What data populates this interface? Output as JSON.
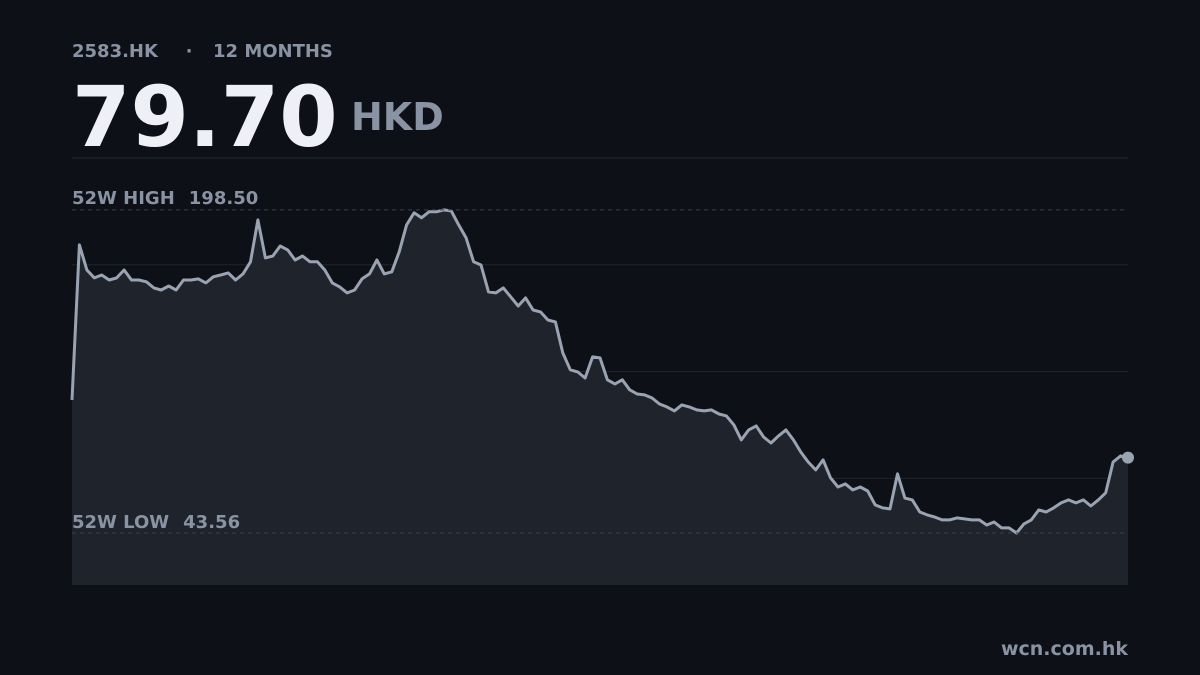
{
  "ticker": "2583.HK",
  "separator": "·",
  "period": "12 MONTHS",
  "price": "79.70",
  "currency": "HKD",
  "source": "wcn.com.hk",
  "chart_data": {
    "type": "line",
    "color": "#9aa3b2",
    "area_color": "#1f232b",
    "ylim": [
      18.6,
      223.4
    ],
    "high": {
      "label": "52W HIGH",
      "value": 198.5,
      "value_label": "198.50"
    },
    "low": {
      "label": "52W LOW",
      "value": 43.56
    },
    "values": [
      107.4,
      181.7,
      169.7,
      165.9,
      167.3,
      164.9,
      165.9,
      169.7,
      164.9,
      164.9,
      164.0,
      161.1,
      160.1,
      162.0,
      160.1,
      164.9,
      164.9,
      165.4,
      163.5,
      166.4,
      167.3,
      168.3,
      164.9,
      167.8,
      173.6,
      193.7,
      175.5,
      176.4,
      181.2,
      179.3,
      174.5,
      176.4,
      173.6,
      173.6,
      169.7,
      163.5,
      161.6,
      158.7,
      160.1,
      165.4,
      167.8,
      174.5,
      167.8,
      168.8,
      178.4,
      191.3,
      197.1,
      194.7,
      197.6,
      197.6,
      198.5,
      198.0,
      191.3,
      185.1,
      173.6,
      172.1,
      159.2,
      158.7,
      161.1,
      156.8,
      152.4,
      156.3,
      150.5,
      149.6,
      145.7,
      144.8,
      129.9,
      121.8,
      120.8,
      117.9,
      128.0,
      127.5,
      117.0,
      115.0,
      117.0,
      112.2,
      110.2,
      109.8,
      108.3,
      105.4,
      104.0,
      102.1,
      105.0,
      104.0,
      102.6,
      102.1,
      102.6,
      100.6,
      99.7,
      95.4,
      88.2,
      93.0,
      94.9,
      89.6,
      86.7,
      90.1,
      93.0,
      88.2,
      82.4,
      77.6,
      73.8,
      78.6,
      70.0,
      65.6,
      67.1,
      64.2,
      65.6,
      63.7,
      57.0,
      55.6,
      55.1,
      71.9,
      60.3,
      59.4,
      53.6,
      52.2,
      51.2,
      49.8,
      49.8,
      50.8,
      50.3,
      49.8,
      49.8,
      47.4,
      48.8,
      46.0,
      46.0,
      43.56,
      47.9,
      49.8,
      54.6,
      53.6,
      55.6,
      58.0,
      59.4,
      58.0,
      59.4,
      56.5,
      59.4,
      62.8,
      77.6,
      80.5,
      79.7
    ]
  }
}
